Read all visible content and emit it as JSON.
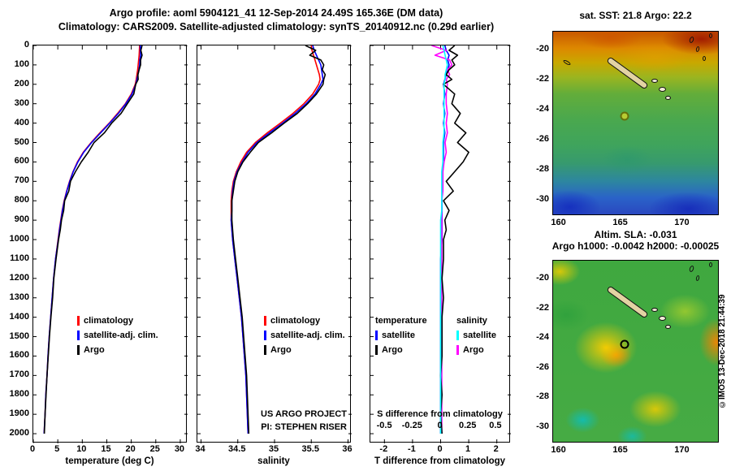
{
  "header": {
    "title_line1": "Argo profile: aoml 5904121_41 12-Sep-2014 24.49S 165.36E (DM data)",
    "title_line2": "Climatology: CARS2009. Satellite-adjusted climatology: synTS_20140912.nc (0.29d earlier)"
  },
  "credits": {
    "project_line1": "US ARGO PROJECT",
    "project_line2": "PI: STEPHEN RISER",
    "imos": "©IMOS 13-Dec-2018 21:44:39"
  },
  "maps": {
    "sst": {
      "title": "sat. SST: 21.8 Argo: 22.2",
      "lon_ticks": [
        160,
        165,
        170
      ],
      "lat_ticks": [
        -20,
        -22,
        -24,
        -26,
        -28,
        -30
      ],
      "lon_range": [
        159.5,
        173.0
      ],
      "lat_range": [
        -31.1,
        -18.8
      ],
      "float_marker": {
        "lon": 165.36,
        "lat": -24.49
      }
    },
    "sla": {
      "title_line1": "Altim. SLA: -0.031",
      "title_line2": "Argo h1000: -0.0042 h2000: -0.00025",
      "lon_ticks": [
        160,
        165,
        170
      ],
      "lat_ticks": [
        -20,
        -22,
        -24,
        -26,
        -28,
        -30
      ],
      "lon_range": [
        159.5,
        173.0
      ],
      "lat_range": [
        -31.1,
        -18.8
      ],
      "float_marker": {
        "lon": 165.36,
        "lat": -24.49
      }
    }
  },
  "chart_data": [
    {
      "id": "temp",
      "type": "line",
      "title": "",
      "xlabel": "temperature (deg C)",
      "ylabel": "",
      "xlim": [
        0,
        31.5
      ],
      "x_ticks": [
        0,
        5,
        10,
        15,
        20,
        25,
        30
      ],
      "ylim": [
        0,
        2050
      ],
      "y_ticks": [
        0,
        100,
        200,
        300,
        400,
        500,
        600,
        700,
        800,
        900,
        1000,
        1100,
        1200,
        1300,
        1400,
        1500,
        1600,
        1700,
        1800,
        1900,
        2000
      ],
      "depths": [
        0,
        25,
        50,
        75,
        100,
        125,
        150,
        175,
        200,
        250,
        300,
        350,
        400,
        450,
        500,
        550,
        600,
        650,
        700,
        750,
        800,
        850,
        900,
        950,
        1000,
        1100,
        1200,
        1300,
        1400,
        1500,
        1600,
        1700,
        1800,
        1900,
        2000
      ],
      "legend": [
        {
          "label": "climatology",
          "color": "#ff0000"
        },
        {
          "label": "satellite-adj. clim.",
          "color": "#0000ff"
        },
        {
          "label": "Argo",
          "color": "#000000"
        }
      ],
      "series": [
        {
          "name": "climatology",
          "color": "#ff0000",
          "values": [
            21.7,
            21.65,
            21.6,
            21.5,
            21.4,
            21.3,
            21.15,
            21.0,
            20.8,
            20.0,
            18.8,
            17.2,
            15.5,
            13.6,
            11.8,
            10.2,
            9.0,
            8.1,
            7.4,
            6.8,
            6.3,
            5.9,
            5.6,
            5.3,
            5.05,
            4.55,
            4.15,
            3.85,
            3.55,
            3.25,
            3.0,
            2.8,
            2.55,
            2.4,
            2.2
          ]
        },
        {
          "name": "satellite-adj. clim.",
          "color": "#0000ff",
          "values": [
            21.85,
            21.85,
            21.9,
            21.75,
            21.7,
            21.55,
            21.35,
            21.15,
            20.9,
            20.15,
            18.9,
            17.35,
            15.6,
            13.75,
            11.9,
            10.3,
            9.1,
            8.15,
            7.45,
            6.85,
            6.35,
            5.95,
            5.65,
            5.35,
            5.1,
            4.55,
            4.15,
            3.85,
            3.55,
            3.25,
            3.0,
            2.8,
            2.55,
            2.4,
            2.2
          ]
        },
        {
          "name": "Argo",
          "color": "#000000",
          "values": [
            22.2,
            21.95,
            22.2,
            21.9,
            21.9,
            21.6,
            21.35,
            21.4,
            20.9,
            20.5,
            19.2,
            17.9,
            16.0,
            14.5,
            12.4,
            11.2,
            9.8,
            8.6,
            7.6,
            7.25,
            6.4,
            6.2,
            5.75,
            5.5,
            5.15,
            4.65,
            4.2,
            3.95,
            3.6,
            3.3,
            3.05,
            2.8,
            2.6,
            2.4,
            2.25
          ]
        }
      ]
    },
    {
      "id": "sal",
      "type": "line",
      "title": "",
      "xlabel": "salinity",
      "ylabel": "",
      "xlim": [
        33.95,
        36.05
      ],
      "x_ticks": [
        34,
        34.5,
        35,
        35.5,
        36
      ],
      "ylim": [
        0,
        2050
      ],
      "y_ticks": [
        0,
        100,
        200,
        300,
        400,
        500,
        600,
        700,
        800,
        900,
        1000,
        1100,
        1200,
        1300,
        1400,
        1500,
        1600,
        1700,
        1800,
        1900,
        2000
      ],
      "depths": [
        0,
        25,
        50,
        75,
        100,
        125,
        150,
        175,
        200,
        250,
        300,
        350,
        400,
        450,
        500,
        550,
        600,
        650,
        700,
        750,
        800,
        850,
        900,
        950,
        1000,
        1100,
        1200,
        1300,
        1400,
        1500,
        1600,
        1700,
        1800,
        1900,
        2000
      ],
      "legend": [
        {
          "label": "climatology",
          "color": "#ff0000"
        },
        {
          "label": "satellite-adj. clim.",
          "color": "#0000ff"
        },
        {
          "label": "Argo",
          "color": "#000000"
        }
      ],
      "series": [
        {
          "name": "climatology",
          "color": "#ff0000",
          "values": [
            35.5,
            35.51,
            35.53,
            35.55,
            35.57,
            35.59,
            35.61,
            35.62,
            35.6,
            35.52,
            35.4,
            35.25,
            35.08,
            34.9,
            34.74,
            34.62,
            34.54,
            34.48,
            34.44,
            34.42,
            34.41,
            34.41,
            34.41,
            34.42,
            34.43,
            34.46,
            34.49,
            34.52,
            34.55,
            34.57,
            34.59,
            34.61,
            34.62,
            34.63,
            34.64
          ]
        },
        {
          "name": "satellite-adj. clim.",
          "color": "#0000ff",
          "values": [
            35.52,
            35.54,
            35.57,
            35.6,
            35.63,
            35.64,
            35.65,
            35.66,
            35.63,
            35.55,
            35.43,
            35.28,
            35.11,
            34.93,
            34.76,
            34.64,
            34.56,
            34.49,
            34.45,
            34.43,
            34.42,
            34.42,
            34.41,
            34.42,
            34.43,
            34.46,
            34.49,
            34.52,
            34.55,
            34.57,
            34.59,
            34.61,
            34.62,
            34.63,
            34.64
          ]
        },
        {
          "name": "Argo",
          "color": "#000000",
          "values": [
            35.42,
            35.56,
            35.48,
            35.63,
            35.67,
            35.65,
            35.69,
            35.67,
            35.66,
            35.57,
            35.45,
            35.31,
            35.13,
            34.96,
            34.78,
            34.67,
            34.57,
            34.5,
            34.46,
            34.44,
            34.42,
            34.42,
            34.42,
            34.43,
            34.44,
            34.47,
            34.5,
            34.53,
            34.56,
            34.58,
            34.6,
            34.62,
            34.63,
            34.64,
            34.65
          ]
        }
      ]
    },
    {
      "id": "diff",
      "type": "line",
      "title": "",
      "xlabel": "T difference from climatology",
      "ylabel": "",
      "xlim": [
        -2.5,
        2.5
      ],
      "x_ticks": [
        -2,
        -1,
        0,
        1,
        2
      ],
      "ylim": [
        0,
        2050
      ],
      "y_ticks": [
        0,
        100,
        200,
        300,
        400,
        500,
        600,
        700,
        800,
        900,
        1000,
        1100,
        1200,
        1300,
        1400,
        1500,
        1600,
        1700,
        1800,
        1900,
        2000
      ],
      "depths": [
        0,
        25,
        50,
        75,
        100,
        125,
        150,
        175,
        200,
        250,
        300,
        350,
        400,
        450,
        500,
        550,
        600,
        650,
        700,
        750,
        800,
        850,
        900,
        950,
        1000,
        1100,
        1200,
        1300,
        1400,
        1500,
        1600,
        1700,
        1800,
        1900,
        2000
      ],
      "s_axis": {
        "label": "S difference from climatology",
        "ticks": [
          -0.5,
          -0.25,
          0,
          0.25,
          0.5
        ],
        "scale_to_t": 4
      },
      "legend_columns": {
        "headers": [
          "temperature",
          "salinity"
        ],
        "columns": [
          [
            {
              "label": "satellite",
              "color": "#0000ff"
            },
            {
              "label": "Argo",
              "color": "#000000"
            }
          ],
          [
            {
              "label": "satellite",
              "color": "#00ffff"
            },
            {
              "label": "Argo",
              "color": "#ff00ff"
            }
          ]
        ]
      },
      "series": [
        {
          "name": "T satellite",
          "color": "#0000ff",
          "axis": "T",
          "values": [
            0.15,
            0.2,
            0.3,
            0.25,
            0.3,
            0.25,
            0.2,
            0.15,
            0.1,
            0.15,
            0.1,
            0.15,
            0.1,
            0.15,
            0.1,
            0.1,
            0.1,
            0.05,
            0.05,
            0.05,
            0.05,
            0.05,
            0.05,
            0.05,
            0.05,
            0.0,
            0.0,
            0.0,
            0.0,
            0.0,
            0.0,
            0.0,
            0.0,
            0.0,
            0.0
          ]
        },
        {
          "name": "S Argo",
          "color": "#ff00ff",
          "axis": "S",
          "values": [
            -0.08,
            0.05,
            -0.05,
            0.08,
            0.1,
            0.06,
            0.08,
            0.05,
            0.06,
            0.05,
            0.05,
            0.06,
            0.05,
            0.06,
            0.04,
            0.05,
            0.03,
            0.02,
            0.02,
            0.02,
            0.01,
            0.01,
            0.01,
            0.01,
            0.01,
            0.01,
            0.01,
            0.01,
            0.01,
            0.01,
            0.01,
            0.01,
            0.01,
            0.01,
            0.01
          ]
        },
        {
          "name": "T Argo",
          "color": "#000000",
          "axis": "T",
          "values": [
            0.5,
            0.3,
            0.6,
            0.4,
            0.5,
            0.3,
            0.2,
            0.4,
            0.1,
            0.5,
            0.4,
            0.7,
            0.5,
            0.9,
            0.6,
            1.0,
            0.8,
            0.5,
            0.2,
            0.45,
            0.1,
            0.3,
            0.15,
            0.2,
            0.1,
            0.1,
            0.05,
            0.1,
            0.05,
            0.05,
            0.05,
            0.0,
            0.05,
            0.0,
            0.05
          ]
        },
        {
          "name": "S satellite",
          "color": "#00ffff",
          "axis": "S",
          "values": [
            0.02,
            0.03,
            0.04,
            0.05,
            0.06,
            0.05,
            0.04,
            0.04,
            0.03,
            0.03,
            0.03,
            0.03,
            0.03,
            0.03,
            0.02,
            0.02,
            0.02,
            0.01,
            0.01,
            0.01,
            0.01,
            0.01,
            0.0,
            0.0,
            0.0,
            0.0,
            0.0,
            0.0,
            0.0,
            0.0,
            0.0,
            0.0,
            0.0,
            0.0,
            0.0
          ]
        }
      ]
    }
  ]
}
